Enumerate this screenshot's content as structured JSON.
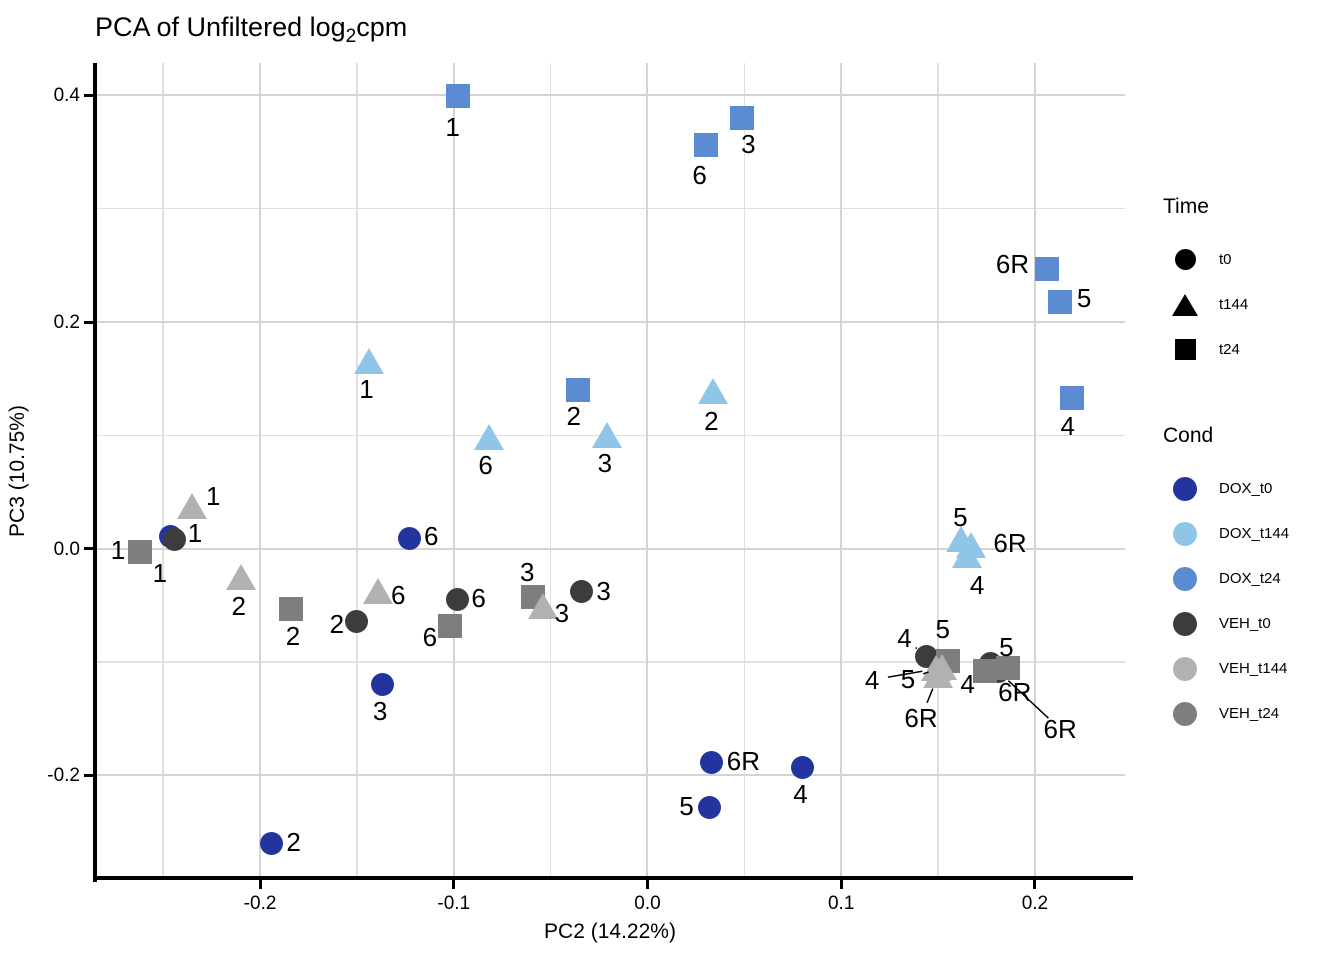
{
  "title": {
    "prefix": "PCA of Unfiltered log",
    "subscript": "2",
    "suffix": "cpm"
  },
  "legend_time": {
    "title": "Time",
    "items": [
      {
        "label": "t0",
        "shape": "circle",
        "color": "#000000"
      },
      {
        "label": "t144",
        "shape": "triangle",
        "color": "#000000"
      },
      {
        "label": "t24",
        "shape": "square",
        "color": "#000000"
      }
    ]
  },
  "legend_cond": {
    "title": "Cond",
    "items": [
      {
        "label": "DOX_t0",
        "color": "#22359E"
      },
      {
        "label": "DOX_t144",
        "color": "#8FC6E8"
      },
      {
        "label": "DOX_t24",
        "color": "#5B8BD0"
      },
      {
        "label": "VEH_t0",
        "color": "#3C3C3C"
      },
      {
        "label": "VEH_t144",
        "color": "#B1B1B1"
      },
      {
        "label": "VEH_t24",
        "color": "#7E7E7E"
      }
    ]
  },
  "chart_data": {
    "type": "scatter",
    "title": "PCA of Unfiltered log2cpm",
    "xlabel": "PC2 (14.22%)",
    "ylabel": "PC3 (10.75%)",
    "xlim": [
      -0.2852,
      0.2465
    ],
    "ylim": [
      -0.2905,
      0.4285
    ],
    "x_major_ticks": [
      -0.2,
      -0.1,
      0.0,
      0.1,
      0.2
    ],
    "x_tick_labels": [
      "-0.2",
      "-0.1",
      "0.0",
      "0.1",
      "0.2"
    ],
    "x_minor_ticks": [
      -0.25,
      -0.15,
      -0.05,
      0.05,
      0.15
    ],
    "y_major_ticks": [
      0.4,
      0.2,
      0.0,
      -0.2
    ],
    "y_tick_labels": [
      "0.4",
      "0.2",
      "0.0",
      "-0.2"
    ],
    "y_minor_ticks": [
      0.3,
      0.1,
      -0.1
    ],
    "grid": "major+minor",
    "legend_position": "right",
    "series": [
      {
        "name": "DOX_t24",
        "time": "t24",
        "shape": "square",
        "color": "#5B8BD0",
        "points": [
          {
            "label": "1",
            "x": -0.098,
            "y": 0.399,
            "dx": -5,
            "dy": 31
          },
          {
            "label": "6",
            "x": 0.03,
            "y": 0.356,
            "dx": -6,
            "dy": 30
          },
          {
            "label": "3",
            "x": 0.049,
            "y": 0.38,
            "dx": 6,
            "dy": 26
          },
          {
            "label": "6R",
            "x": 0.206,
            "y": 0.247,
            "dx": -34,
            "dy": -5
          },
          {
            "label": "5",
            "x": 0.213,
            "y": 0.218,
            "dx": 24,
            "dy": -4
          },
          {
            "label": "4",
            "x": 0.219,
            "y": 0.133,
            "dx": -4,
            "dy": 28
          },
          {
            "label": "2",
            "x": -0.036,
            "y": 0.14,
            "dx": -4,
            "dy": 26
          }
        ]
      },
      {
        "name": "DOX_t144",
        "time": "t144",
        "shape": "triangle",
        "color": "#8FC6E8",
        "points": [
          {
            "label": "1",
            "x": -0.144,
            "y": 0.165,
            "dx": -2,
            "dy": 27
          },
          {
            "label": "6",
            "x": -0.082,
            "y": 0.098,
            "dx": -3,
            "dy": 27
          },
          {
            "label": "3",
            "x": -0.021,
            "y": 0.099,
            "dx": -2,
            "dy": 27
          },
          {
            "label": "2",
            "x": 0.034,
            "y": 0.138,
            "dx": -2,
            "dy": 29
          },
          {
            "label": "5",
            "x": 0.162,
            "y": 0.008,
            "dx": -1,
            "dy": -23
          },
          {
            "label": "6R",
            "x": 0.167,
            "y": 0.002,
            "dx": 39,
            "dy": -3
          },
          {
            "label": "4",
            "x": 0.165,
            "y": -0.006,
            "dx": 10,
            "dy": 29
          }
        ]
      },
      {
        "name": "DOX_t0",
        "time": "t0",
        "shape": "circle",
        "color": "#22359E",
        "points": [
          {
            "label": "1",
            "x": -0.246,
            "y": 0.011,
            "dx": 24,
            "dy": -3
          },
          {
            "label": "6",
            "x": -0.123,
            "y": 0.009,
            "dx": 22,
            "dy": -3
          },
          {
            "label": "3",
            "x": -0.137,
            "y": -0.12,
            "dx": -2,
            "dy": 26
          },
          {
            "label": "2",
            "x": -0.194,
            "y": -0.26,
            "dx": 22,
            "dy": -1
          },
          {
            "label": "6R",
            "x": 0.033,
            "y": -0.189,
            "dx": 32,
            "dy": -2
          },
          {
            "label": "5",
            "x": 0.032,
            "y": -0.228,
            "dx": -23,
            "dy": -1
          },
          {
            "label": "4",
            "x": 0.08,
            "y": -0.193,
            "dx": -2,
            "dy": 27
          }
        ]
      },
      {
        "name": "VEH_t0",
        "time": "t0",
        "shape": "circle",
        "color": "#3C3C3C",
        "points": [
          {
            "label": "1",
            "x": -0.244,
            "y": 0.008,
            "dx": -15,
            "dy": 33
          },
          {
            "label": "2",
            "x": -0.15,
            "y": -0.064,
            "dx": -20,
            "dy": 3
          },
          {
            "label": "6",
            "x": -0.098,
            "y": -0.045,
            "dx": 21,
            "dy": -2
          },
          {
            "label": "3",
            "x": -0.034,
            "y": -0.038,
            "dx": 22,
            "dy": -1
          },
          {
            "label": "4",
            "x": 0.144,
            "y": -0.095,
            "dx": -22,
            "dy": -18,
            "leader": true
          },
          {
            "label": "5",
            "x": 0.177,
            "y": -0.101,
            "dx": 16,
            "dy": -16
          },
          {
            "label": "6R",
            "x": 0.181,
            "y": -0.108,
            "dx": 62,
            "dy": 58,
            "leader": true
          }
        ]
      },
      {
        "name": "VEH_t24",
        "time": "t24",
        "shape": "square",
        "color": "#7E7E7E",
        "points": [
          {
            "label": "1",
            "x": -0.262,
            "y": -0.003,
            "dx": -22,
            "dy": -2
          },
          {
            "label": "2",
            "x": -0.184,
            "y": -0.053,
            "dx": 2,
            "dy": 27
          },
          {
            "label": "6",
            "x": -0.102,
            "y": -0.068,
            "dx": -20,
            "dy": 11
          },
          {
            "label": "3",
            "x": -0.059,
            "y": -0.043,
            "dx": -6,
            "dy": -25
          },
          {
            "label": "5",
            "x": 0.155,
            "y": -0.099,
            "dx": -5,
            "dy": -32
          },
          {
            "label": "4",
            "x": 0.174,
            "y": -0.108,
            "dx": -17,
            "dy": 13
          },
          {
            "label": "6R",
            "x": 0.186,
            "y": -0.105,
            "dx": 7,
            "dy": 24
          }
        ]
      },
      {
        "name": "VEH_t144",
        "time": "t144",
        "shape": "triangle",
        "color": "#B1B1B1",
        "points": [
          {
            "label": "1",
            "x": -0.235,
            "y": 0.037,
            "dx": 21,
            "dy": -11
          },
          {
            "label": "2",
            "x": -0.21,
            "y": -0.026,
            "dx": -2,
            "dy": 28
          },
          {
            "label": "6",
            "x": -0.139,
            "y": -0.038,
            "dx": 20,
            "dy": 3
          },
          {
            "label": "3",
            "x": -0.054,
            "y": -0.051,
            "dx": 19,
            "dy": 6
          },
          {
            "label": "4",
            "x": 0.149,
            "y": -0.106,
            "dx": -64,
            "dy": 11,
            "leader": true
          },
          {
            "label": "5",
            "x": 0.152,
            "y": -0.105,
            "dx": -34,
            "dy": 11,
            "leader": true
          },
          {
            "label": "6R",
            "x": 0.15,
            "y": -0.112,
            "dx": -17,
            "dy": 42,
            "leader": true
          }
        ]
      }
    ]
  }
}
